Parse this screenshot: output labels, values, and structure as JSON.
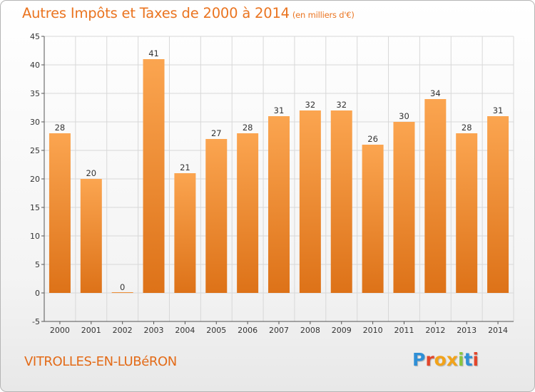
{
  "title": "Autres Impôts et Taxes de 2000 à 2014",
  "unit": "(en milliers d'€)",
  "commune": "VITROLLES-EN-LUBéRON",
  "logo": {
    "text": "Proxiti",
    "letters": [
      {
        "ch": "P",
        "color": "#2f8fd6"
      },
      {
        "ch": "r",
        "color": "#e2462b"
      },
      {
        "ch": "o",
        "color": "#f2a31a"
      },
      {
        "ch": "x",
        "color": "#f2a31a"
      },
      {
        "ch": "i",
        "color": "#8ac53e"
      },
      {
        "ch": "t",
        "color": "#2f8fd6"
      },
      {
        "ch": "i",
        "color": "#e2462b"
      }
    ]
  },
  "colors": {
    "bar_light": "#fba550",
    "bar_dark": "#dd7218",
    "text": "#333333",
    "grid": "#d8d8d8"
  },
  "chart_data": {
    "type": "bar",
    "categories": [
      "2000",
      "2001",
      "2002",
      "2003",
      "2004",
      "2005",
      "2006",
      "2007",
      "2008",
      "2009",
      "2010",
      "2011",
      "2012",
      "2013",
      "2014"
    ],
    "values": [
      28,
      20,
      0,
      41,
      21,
      27,
      28,
      31,
      32,
      32,
      26,
      30,
      34,
      28,
      31
    ],
    "ylim": [
      -5,
      45
    ],
    "yticks": [
      -5,
      0,
      5,
      10,
      15,
      20,
      25,
      30,
      35,
      40,
      45
    ],
    "grid": true,
    "title": "Autres Impôts et Taxes de 2000 à 2014",
    "xlabel": "",
    "ylabel": ""
  }
}
